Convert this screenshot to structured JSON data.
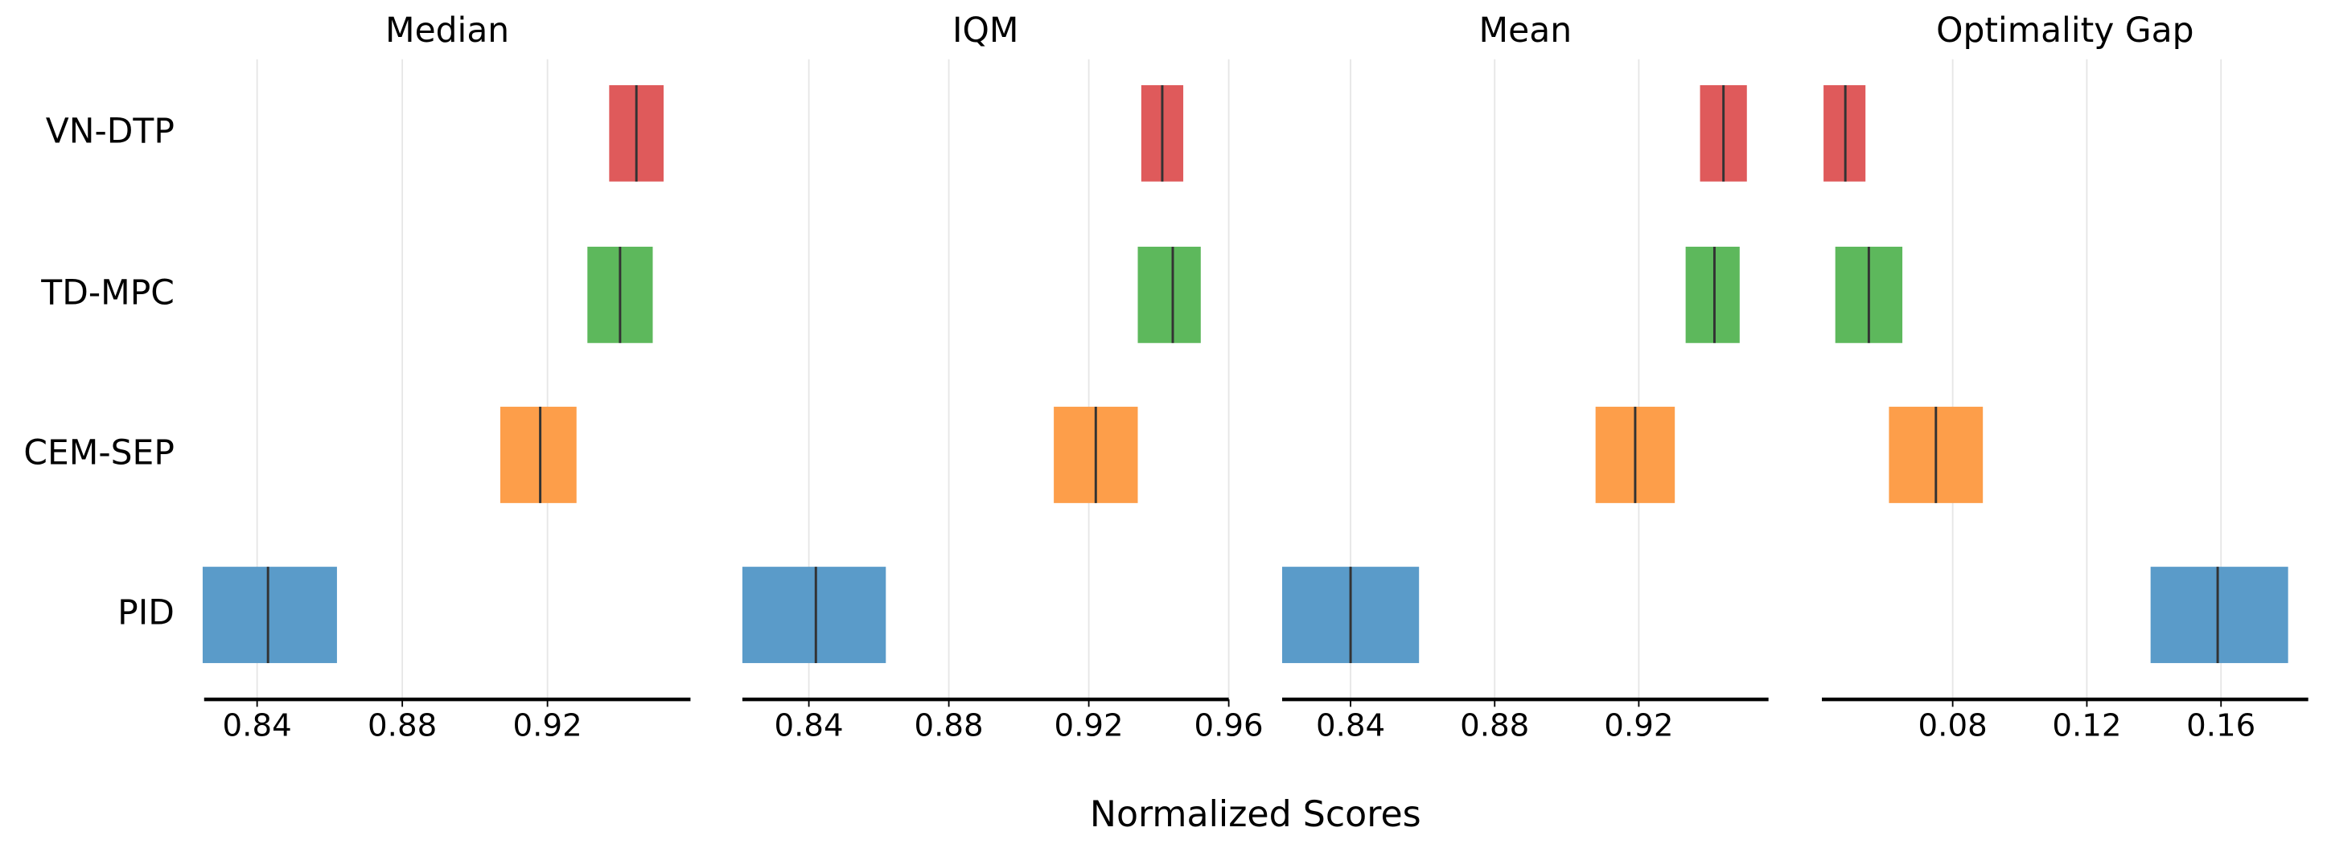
{
  "xlabel": "Normalized Scores",
  "chart_data": [
    {
      "type": "interval",
      "title": "Median",
      "categories": [
        "VN-DTP",
        "TD-MPC",
        "CEM-SEP",
        "PID"
      ],
      "colors": [
        "#df5a5b",
        "#5db85c",
        "#fd9e4a",
        "#5a9bc9"
      ],
      "lower": [
        0.937,
        0.931,
        0.907,
        0.825
      ],
      "upper": [
        0.952,
        0.949,
        0.928,
        0.862
      ],
      "values": [
        0.9445,
        0.94,
        0.918,
        0.843
      ],
      "xlim": [
        0.8254,
        0.9594
      ],
      "xticks": [
        0.84,
        0.88,
        0.92
      ],
      "grid": true
    },
    {
      "type": "interval",
      "title": "IQM",
      "colors": [
        "#df5a5b",
        "#5db85c",
        "#fd9e4a",
        "#5a9bc9"
      ],
      "lower": [
        0.935,
        0.934,
        0.91,
        0.821
      ],
      "upper": [
        0.947,
        0.952,
        0.934,
        0.862
      ],
      "values": [
        0.941,
        0.944,
        0.922,
        0.842
      ],
      "xlim": [
        0.821,
        0.96
      ],
      "xticks": [
        0.84,
        0.88,
        0.92,
        0.96
      ],
      "grid": true
    },
    {
      "type": "interval",
      "title": "Mean",
      "colors": [
        "#df5a5b",
        "#5db85c",
        "#fd9e4a",
        "#5a9bc9"
      ],
      "lower": [
        0.937,
        0.933,
        0.908,
        0.821
      ],
      "upper": [
        0.95,
        0.948,
        0.93,
        0.859
      ],
      "values": [
        0.9435,
        0.941,
        0.919,
        0.84
      ],
      "xlim": [
        0.821,
        0.956
      ],
      "xticks": [
        0.84,
        0.88,
        0.92
      ],
      "grid": true
    },
    {
      "type": "interval",
      "title": "Optimality Gap",
      "colors": [
        "#df5a5b",
        "#5db85c",
        "#fd9e4a",
        "#5a9bc9"
      ],
      "lower": [
        0.0415,
        0.045,
        0.061,
        0.139
      ],
      "upper": [
        0.054,
        0.065,
        0.089,
        0.18
      ],
      "values": [
        0.048,
        0.055,
        0.075,
        0.159
      ],
      "xlim": [
        0.041,
        0.186
      ],
      "xticks": [
        0.08,
        0.12,
        0.16
      ],
      "grid": true
    }
  ]
}
